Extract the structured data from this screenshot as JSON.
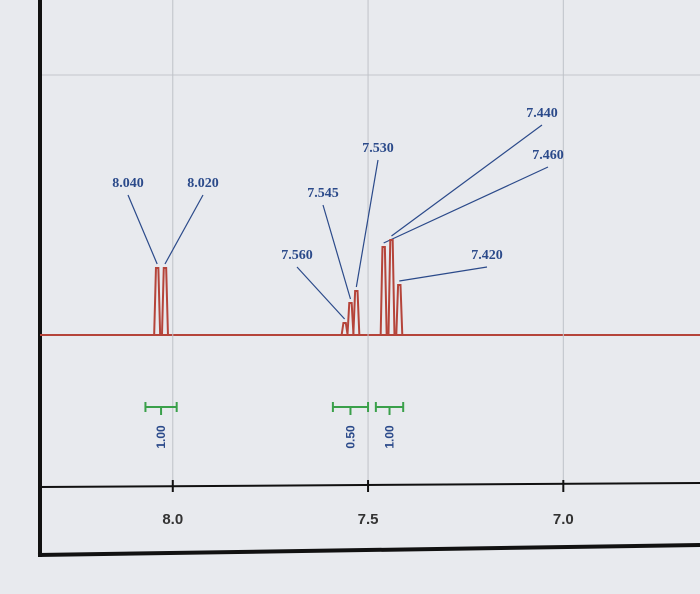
{
  "chart_data": {
    "type": "nmr",
    "x": [
      8.04,
      8.02,
      7.56,
      7.545,
      7.53,
      7.46,
      7.44,
      7.42
    ],
    "value_labels": [
      "8.040",
      "8.020",
      "7.560",
      "7.545",
      "7.530",
      "7.460",
      "7.440",
      "7.420"
    ],
    "values": [
      67,
      67,
      12,
      32,
      44,
      88,
      95,
      50
    ],
    "color": "#b5443a",
    "xlim": [
      8.34,
      6.65
    ],
    "xticks": [
      {
        "value": 8.0,
        "label": "8.0"
      },
      {
        "value": 7.5,
        "label": "7.5"
      },
      {
        "value": 7.0,
        "label": "7.0"
      }
    ],
    "integrals": [
      {
        "from": 8.07,
        "to": 7.99,
        "label": "1.00"
      },
      {
        "from": 7.59,
        "to": 7.5,
        "label": "0.50"
      },
      {
        "from": 7.48,
        "to": 7.41,
        "label": "1.00"
      }
    ],
    "grid": true
  }
}
